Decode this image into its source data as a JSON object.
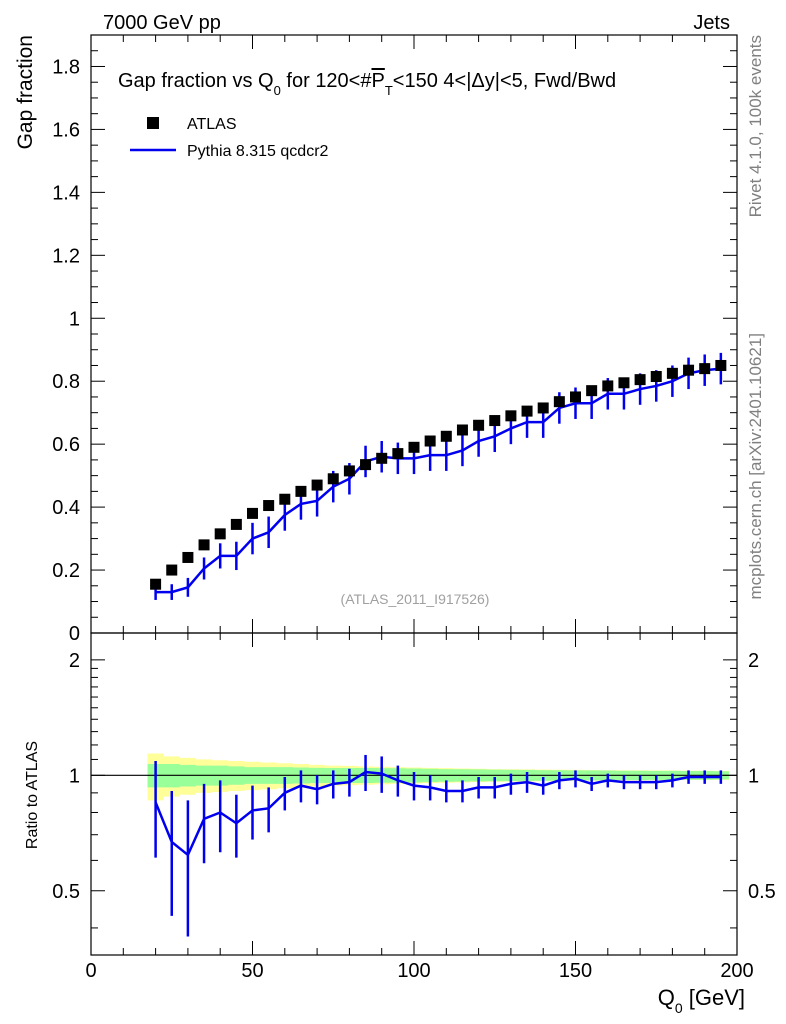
{
  "header": {
    "left": "7000 GeV pp",
    "right": "Jets"
  },
  "side_labels": {
    "rivet": "Rivet 4.1.0,  100k events",
    "mcplots": "mcplots.cern.ch [arXiv:2401.10621]"
  },
  "chart_data": [
    {
      "type": "scatter",
      "panel": "main",
      "title_parts": {
        "a": "Gap fraction vs Q",
        "sub": "0",
        "b": " for 120<#",
        "p": "P",
        "psub": "T",
        "c": "<150  4<|Δy|<5, Fwd/Bwd"
      },
      "ylabel": "Gap fraction",
      "xlim": [
        0,
        200
      ],
      "ylim": [
        0,
        1.9
      ],
      "yticks": [
        "0.2",
        "0.4",
        "0.6",
        "0.8",
        "1",
        "1.2",
        "1.4",
        "1.6",
        "1.8"
      ],
      "ytick_values": [
        0.2,
        0.4,
        0.6,
        0.8,
        1.0,
        1.2,
        1.4,
        1.6,
        1.8
      ],
      "ytick_zero": "0",
      "watermark": "(ATLAS_2011_I917526)",
      "legend": {
        "data": "ATLAS",
        "mc": "Pythia 8.315 qcdcr2"
      },
      "x": [
        20,
        25,
        30,
        35,
        40,
        45,
        50,
        55,
        60,
        65,
        70,
        75,
        80,
        85,
        90,
        95,
        100,
        105,
        110,
        115,
        120,
        125,
        130,
        135,
        140,
        145,
        150,
        155,
        160,
        165,
        170,
        175,
        180,
        185,
        190,
        195
      ],
      "atlas": [
        0.155,
        0.2,
        0.24,
        0.28,
        0.315,
        0.345,
        0.38,
        0.405,
        0.425,
        0.45,
        0.47,
        0.49,
        0.515,
        0.535,
        0.555,
        0.57,
        0.59,
        0.61,
        0.625,
        0.645,
        0.66,
        0.675,
        0.69,
        0.705,
        0.715,
        0.735,
        0.75,
        0.77,
        0.785,
        0.795,
        0.805,
        0.815,
        0.825,
        0.835,
        0.84,
        0.85
      ],
      "pythia": [
        0.13,
        0.13,
        0.145,
        0.205,
        0.245,
        0.245,
        0.3,
        0.32,
        0.375,
        0.41,
        0.42,
        0.465,
        0.49,
        0.545,
        0.56,
        0.555,
        0.555,
        0.565,
        0.565,
        0.58,
        0.61,
        0.625,
        0.65,
        0.67,
        0.67,
        0.715,
        0.73,
        0.73,
        0.76,
        0.76,
        0.775,
        0.785,
        0.8,
        0.825,
        0.835,
        0.84
      ],
      "pythia_err": [
        0.025,
        0.025,
        0.03,
        0.035,
        0.04,
        0.045,
        0.05,
        0.05,
        0.05,
        0.05,
        0.05,
        0.05,
        0.05,
        0.05,
        0.05,
        0.05,
        0.05,
        0.05,
        0.05,
        0.05,
        0.05,
        0.05,
        0.05,
        0.05,
        0.05,
        0.05,
        0.05,
        0.05,
        0.05,
        0.05,
        0.05,
        0.05,
        0.05,
        0.05,
        0.05,
        0.05
      ]
    },
    {
      "type": "line",
      "panel": "ratio",
      "ylabel": "Ratio to ATLAS",
      "xlabel_main": "Q",
      "xlabel_sub": "0",
      "xlabel_unit": " [GeV]",
      "xlim": [
        0,
        200
      ],
      "ylim": [
        0.34,
        2.35
      ],
      "xticks": [
        "0",
        "50",
        "100",
        "150",
        "200"
      ],
      "xtick_values": [
        0,
        50,
        100,
        150,
        200
      ],
      "yticks": [
        "0.5",
        "1",
        "2"
      ],
      "ytick_values": [
        0.5,
        1.0,
        2.0
      ],
      "x": [
        20,
        25,
        30,
        35,
        40,
        45,
        50,
        55,
        60,
        65,
        70,
        75,
        80,
        85,
        90,
        95,
        100,
        105,
        110,
        115,
        120,
        125,
        130,
        135,
        140,
        145,
        150,
        155,
        160,
        165,
        170,
        175,
        180,
        185,
        190,
        195
      ],
      "ratio": [
        0.85,
        0.67,
        0.62,
        0.77,
        0.8,
        0.75,
        0.81,
        0.82,
        0.9,
        0.94,
        0.92,
        0.95,
        0.96,
        1.02,
        1.01,
        0.97,
        0.94,
        0.93,
        0.91,
        0.91,
        0.93,
        0.93,
        0.95,
        0.96,
        0.94,
        0.97,
        0.98,
        0.95,
        0.97,
        0.96,
        0.96,
        0.96,
        0.97,
        0.99,
        0.99,
        0.99
      ],
      "ratio_lo": [
        0.61,
        0.43,
        0.38,
        0.59,
        0.63,
        0.61,
        0.68,
        0.71,
        0.81,
        0.85,
        0.84,
        0.87,
        0.88,
        0.91,
        0.9,
        0.88,
        0.86,
        0.86,
        0.85,
        0.85,
        0.87,
        0.87,
        0.89,
        0.9,
        0.89,
        0.92,
        0.93,
        0.91,
        0.93,
        0.92,
        0.92,
        0.92,
        0.93,
        0.95,
        0.95,
        0.95
      ],
      "ratio_hi": [
        1.09,
        0.91,
        0.86,
        0.95,
        0.97,
        0.89,
        0.94,
        0.93,
        0.99,
        1.03,
        1.0,
        1.03,
        1.04,
        1.13,
        1.12,
        1.06,
        1.02,
        1.0,
        0.97,
        0.97,
        0.99,
        0.99,
        1.01,
        1.02,
        0.99,
        1.02,
        1.03,
        0.99,
        1.01,
        1.0,
        1.0,
        1.0,
        1.01,
        1.03,
        1.03,
        1.03
      ],
      "band_inner": [
        0.07,
        0.07,
        0.065,
        0.06,
        0.06,
        0.055,
        0.05,
        0.05,
        0.05,
        0.048,
        0.046,
        0.045,
        0.045,
        0.045,
        0.044,
        0.043,
        0.042,
        0.04,
        0.038,
        0.037,
        0.036,
        0.035,
        0.034,
        0.033,
        0.032,
        0.031,
        0.03,
        0.03,
        0.029,
        0.028,
        0.028,
        0.027,
        0.027,
        0.026,
        0.026,
        0.025
      ],
      "band_outer": [
        0.14,
        0.12,
        0.11,
        0.1,
        0.095,
        0.09,
        0.085,
        0.08,
        0.075,
        0.07,
        0.065,
        0.06,
        0.058,
        0.055,
        0.053,
        0.05,
        0.048,
        0.046,
        0.044,
        0.042,
        0.04,
        0.038,
        0.037,
        0.036,
        0.035,
        0.034,
        0.033,
        0.032,
        0.031,
        0.03,
        0.03,
        0.029,
        0.029,
        0.028,
        0.028,
        0.027
      ]
    }
  ],
  "colors": {
    "mc": "#0000ee",
    "data": "#000000",
    "band_inner": "#99ff99",
    "band_outer": "#ffff99",
    "watermark": "#a0a0a0"
  }
}
